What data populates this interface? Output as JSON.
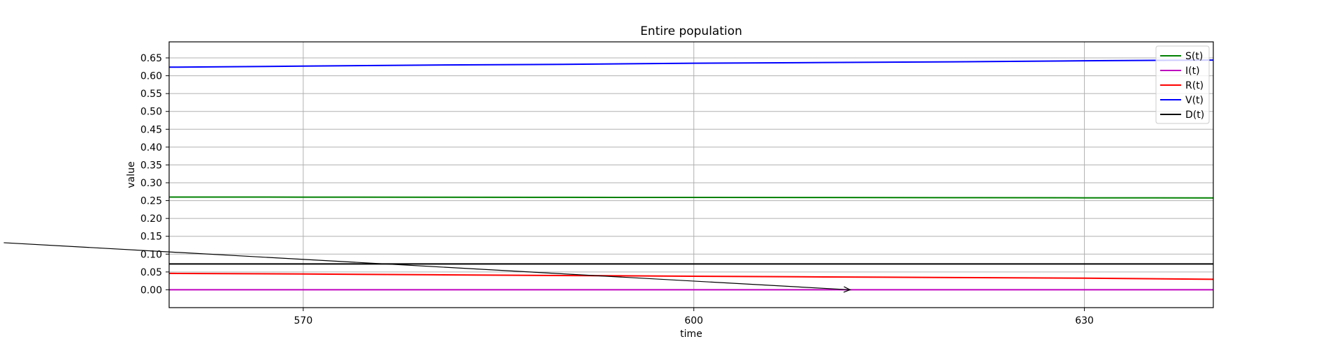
{
  "chart_data": {
    "type": "line",
    "title": "Entire population",
    "xlabel": "time",
    "ylabel": "value",
    "xlim": [
      559.7,
      639.9
    ],
    "ylim": [
      -0.05,
      0.695
    ],
    "xticks": [
      570,
      600,
      630
    ],
    "xtick_labels": [
      "570",
      "600",
      "630"
    ],
    "yticks": [
      0.0,
      0.05,
      0.1,
      0.15,
      0.2,
      0.25,
      0.3,
      0.35,
      0.4,
      0.45,
      0.5,
      0.55,
      0.6,
      0.65
    ],
    "ytick_labels": [
      "0.00",
      "0.05",
      "0.10",
      "0.15",
      "0.20",
      "0.25",
      "0.30",
      "0.35",
      "0.40",
      "0.45",
      "0.50",
      "0.55",
      "0.60",
      "0.65"
    ],
    "grid": true,
    "legend_position": "top-right",
    "series": [
      {
        "name": "S(t)",
        "color": "#008000",
        "x": [
          559.7,
          570,
          580,
          590,
          600,
          610,
          620,
          630,
          639.9
        ],
        "y": [
          0.26,
          0.2598,
          0.2595,
          0.2592,
          0.2589,
          0.2586,
          0.2582,
          0.2578,
          0.2575
        ]
      },
      {
        "name": "I(t)",
        "color": "#bf00bf",
        "x": [
          559.7,
          570,
          580,
          590,
          600,
          610,
          620,
          630,
          639.9
        ],
        "y": [
          0.0,
          0.0,
          0.0,
          0.0,
          0.0,
          0.0,
          0.0,
          0.0,
          0.0
        ]
      },
      {
        "name": "R(t)",
        "color": "#ff0000",
        "x": [
          559.7,
          570,
          580,
          590,
          600,
          610,
          620,
          630,
          639.9
        ],
        "y": [
          0.046,
          0.0443,
          0.0421,
          0.04,
          0.038,
          0.0361,
          0.0343,
          0.0325,
          0.0295
        ]
      },
      {
        "name": "V(t)",
        "color": "#0000ff",
        "x": [
          559.7,
          570,
          580,
          590,
          600,
          610,
          620,
          630,
          639.9
        ],
        "y": [
          0.624,
          0.627,
          0.63,
          0.632,
          0.635,
          0.637,
          0.639,
          0.642,
          0.644
        ]
      },
      {
        "name": "D(t)",
        "color": "#000000",
        "x": [
          559.7,
          570,
          580,
          590,
          600,
          610,
          620,
          630,
          639.9
        ],
        "y": [
          0.0725,
          0.0725,
          0.0725,
          0.0725,
          0.0725,
          0.0725,
          0.0725,
          0.0725,
          0.0725
        ]
      }
    ],
    "annotations": [
      {
        "type": "arrow",
        "text": "",
        "from": [
          547,
          0.132
        ],
        "to": [
          612,
          0.0
        ]
      }
    ]
  }
}
